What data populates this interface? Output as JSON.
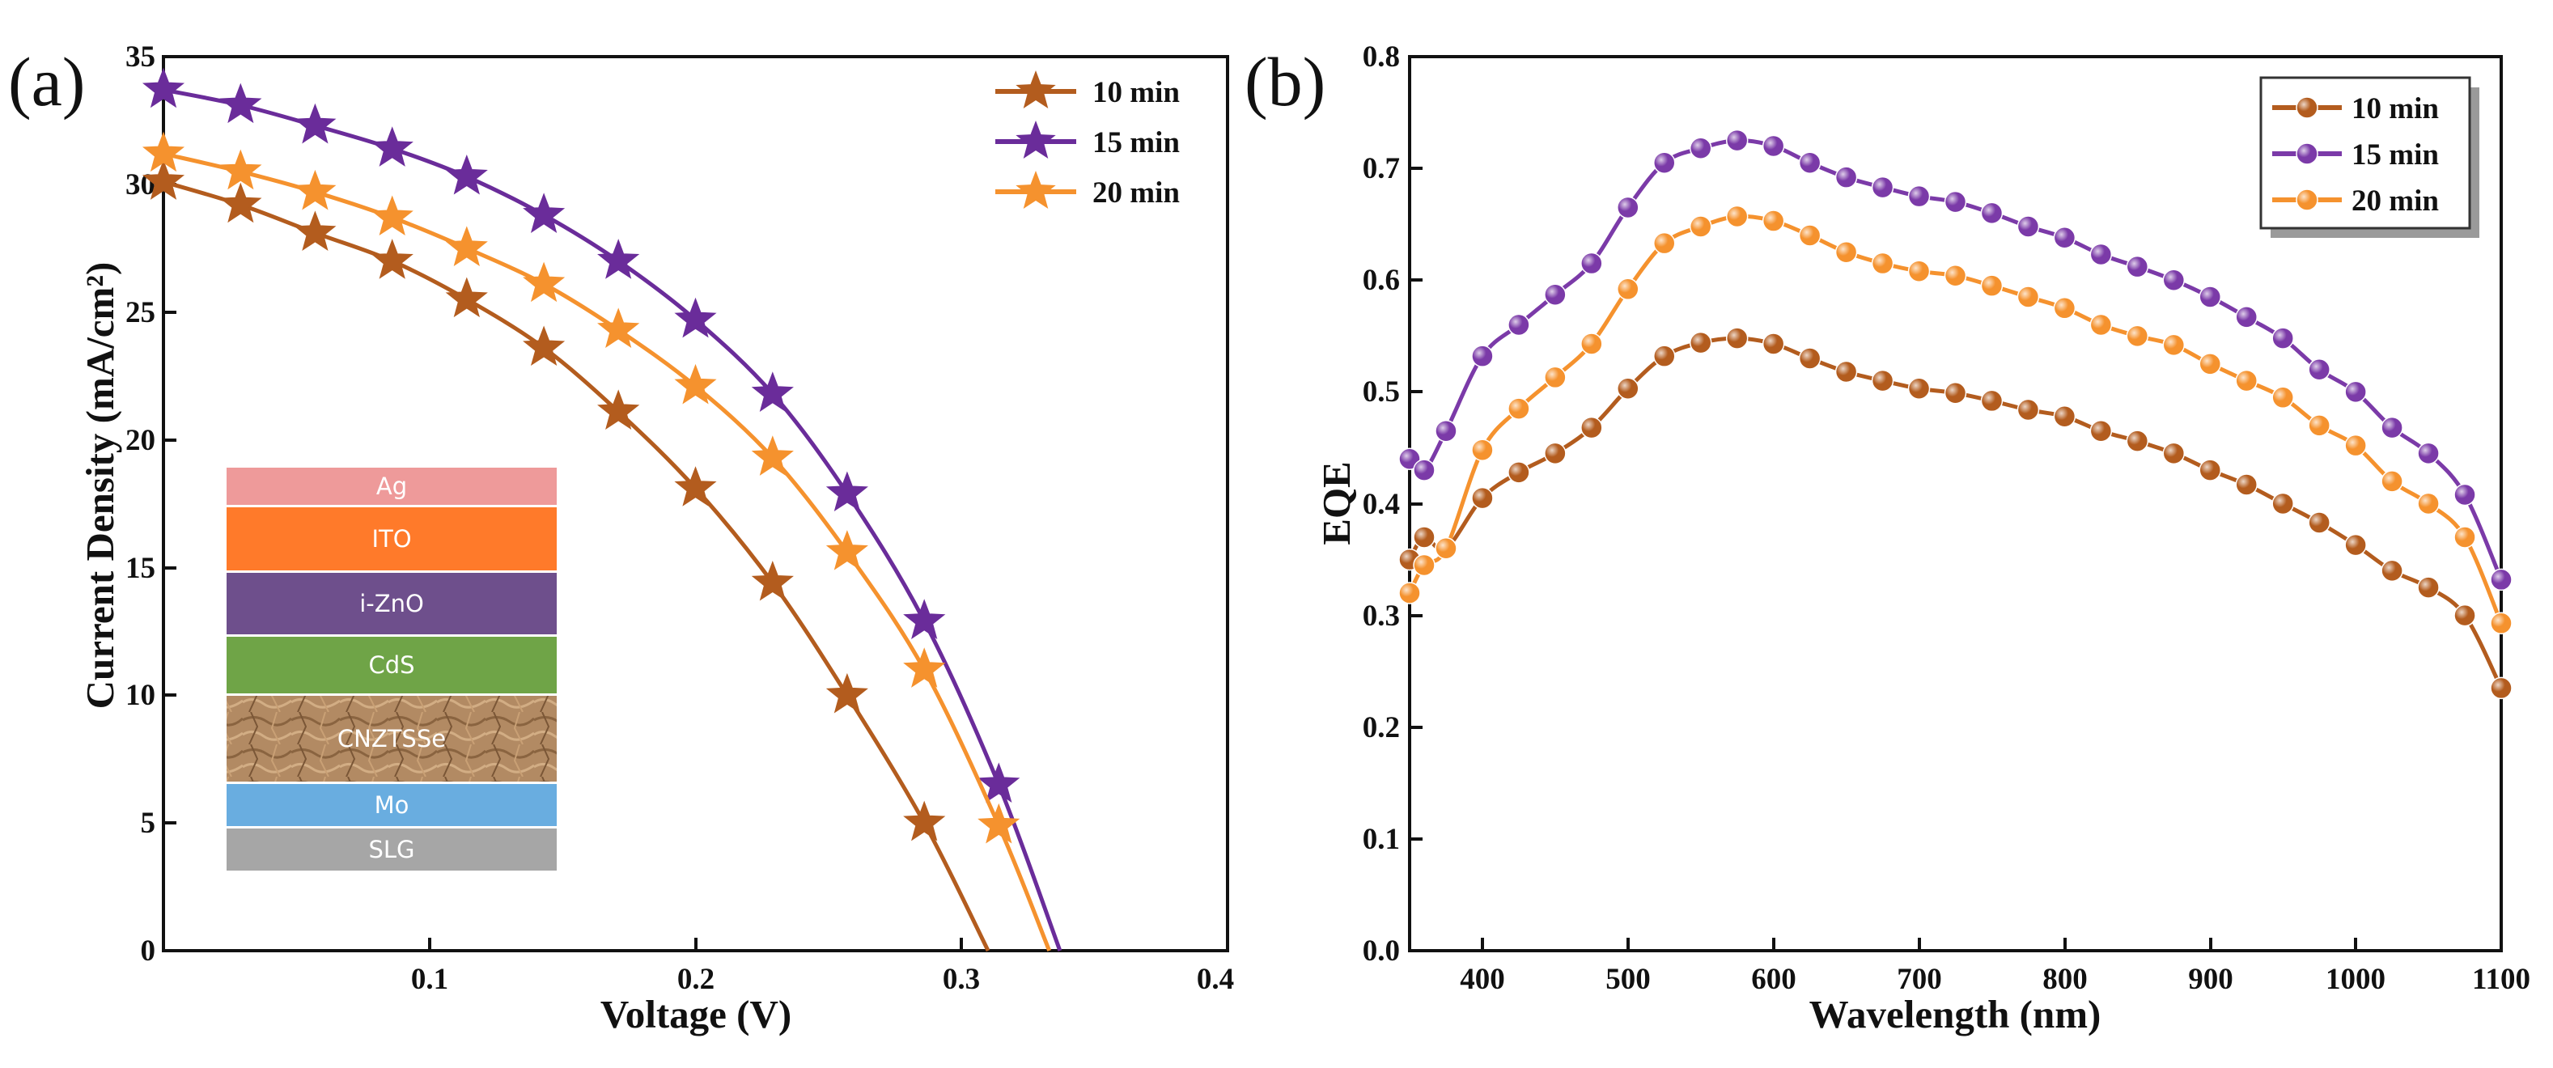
{
  "chart_data": [
    {
      "panel_label": "(a)",
      "type": "line",
      "xlabel": "Voltage (V)",
      "ylabel": "Current Density (mA/cm²)",
      "xlim": [
        0,
        0.4
      ],
      "ylim": [
        0,
        35
      ],
      "xticks": [
        "0.1",
        "0.2",
        "0.3",
        "0.4"
      ],
      "yticks": [
        "0",
        "5",
        "10",
        "15",
        "20",
        "25",
        "30",
        "35"
      ],
      "legend_position": "top-right",
      "series": [
        {
          "name": "10 min",
          "color": "#b35c1e",
          "marker": "star",
          "x": [
            0,
            0.029,
            0.057,
            0.086,
            0.114,
            0.143,
            0.171,
            0.2,
            0.229,
            0.257,
            0.286,
            0.31
          ],
          "y": [
            30.1,
            29.2,
            28.1,
            27.0,
            25.5,
            23.6,
            21.1,
            18.1,
            14.4,
            10.0,
            5.0,
            0
          ]
        },
        {
          "name": "15 min",
          "color": "#6a2c9a",
          "marker": "star",
          "x": [
            0,
            0.029,
            0.057,
            0.086,
            0.114,
            0.143,
            0.171,
            0.2,
            0.229,
            0.257,
            0.286,
            0.314,
            0.337
          ],
          "y": [
            33.7,
            33.1,
            32.3,
            31.4,
            30.3,
            28.8,
            27.0,
            24.7,
            21.8,
            17.9,
            12.9,
            6.5,
            0
          ]
        },
        {
          "name": "20 min",
          "color": "#f5922e",
          "marker": "star",
          "x": [
            0,
            0.029,
            0.057,
            0.086,
            0.114,
            0.143,
            0.171,
            0.2,
            0.229,
            0.257,
            0.286,
            0.314,
            0.333
          ],
          "y": [
            31.2,
            30.5,
            29.7,
            28.7,
            27.5,
            26.1,
            24.3,
            22.1,
            19.3,
            15.6,
            11.0,
            4.9,
            0
          ]
        }
      ],
      "inset": {
        "layers": [
          {
            "label": "Ag",
            "color": "#ee9a9a"
          },
          {
            "label": "ITO",
            "color": "#ff7a2a"
          },
          {
            "label": "i-ZnO",
            "color": "#6e4f8c"
          },
          {
            "label": "CdS",
            "color": "#6fa447"
          },
          {
            "label": "CNZTSSe",
            "color": "#b28a63"
          },
          {
            "label": "Mo",
            "color": "#69ade0"
          },
          {
            "label": "SLG",
            "color": "#a6a6a6"
          }
        ]
      }
    },
    {
      "panel_label": "(b)",
      "type": "line",
      "xlabel": "Wavelength (nm)",
      "ylabel": "EQE",
      "xlim": [
        350,
        1100
      ],
      "ylim": [
        0,
        0.8
      ],
      "xticks": [
        "400",
        "500",
        "600",
        "700",
        "800",
        "900",
        "1000",
        "1100"
      ],
      "yticks": [
        "0.0",
        "0.1",
        "0.2",
        "0.3",
        "0.4",
        "0.5",
        "0.6",
        "0.7",
        "0.8"
      ],
      "legend_position": "top-right",
      "x": [
        350,
        360,
        375,
        400,
        425,
        450,
        475,
        500,
        525,
        550,
        575,
        600,
        625,
        650,
        675,
        700,
        725,
        750,
        775,
        800,
        825,
        850,
        875,
        900,
        925,
        950,
        975,
        1000,
        1025,
        1050,
        1075,
        1100
      ],
      "series": [
        {
          "name": "10 min",
          "color": "#b35c1e",
          "marker": "circle",
          "values": [
            0.35,
            0.37,
            0.36,
            0.405,
            0.428,
            0.445,
            0.468,
            0.503,
            0.532,
            0.544,
            0.548,
            0.543,
            0.53,
            0.518,
            0.51,
            0.503,
            0.499,
            0.492,
            0.484,
            0.478,
            0.465,
            0.456,
            0.445,
            0.43,
            0.417,
            0.4,
            0.383,
            0.363,
            0.34,
            0.325,
            0.3,
            0.235
          ]
        },
        {
          "name": "15 min",
          "color": "#7b3aa8",
          "marker": "circle",
          "values": [
            0.44,
            0.43,
            0.465,
            0.532,
            0.56,
            0.587,
            0.615,
            0.665,
            0.705,
            0.718,
            0.725,
            0.72,
            0.705,
            0.692,
            0.683,
            0.675,
            0.67,
            0.66,
            0.648,
            0.638,
            0.623,
            0.612,
            0.6,
            0.585,
            0.567,
            0.548,
            0.52,
            0.5,
            0.468,
            0.445,
            0.408,
            0.332
          ]
        },
        {
          "name": "20 min",
          "color": "#f5922e",
          "marker": "circle",
          "values": [
            0.32,
            0.345,
            0.36,
            0.448,
            0.485,
            0.513,
            0.543,
            0.592,
            0.633,
            0.648,
            0.657,
            0.653,
            0.64,
            0.625,
            0.615,
            0.608,
            0.604,
            0.595,
            0.585,
            0.575,
            0.56,
            0.55,
            0.542,
            0.525,
            0.51,
            0.495,
            0.47,
            0.452,
            0.42,
            0.4,
            0.37,
            0.293
          ]
        }
      ]
    }
  ]
}
